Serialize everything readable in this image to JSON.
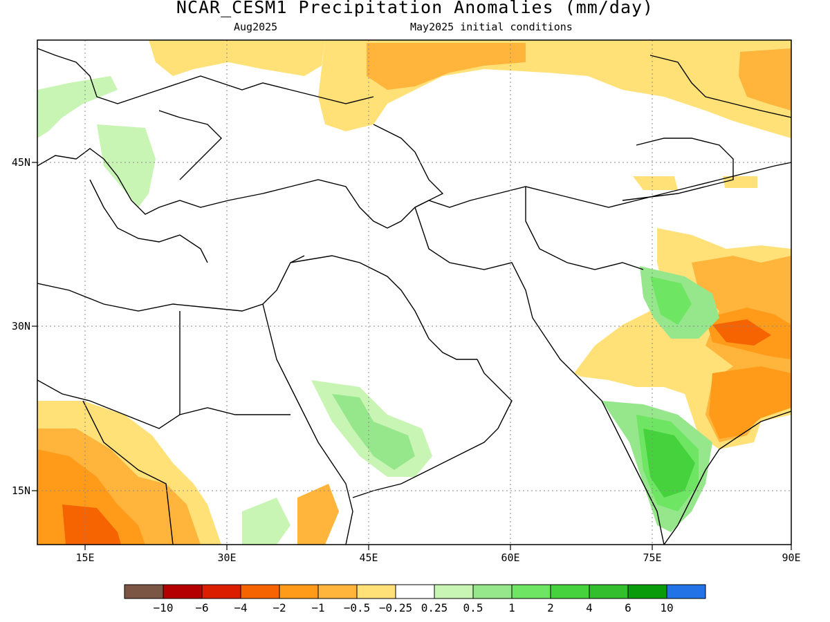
{
  "title": "NCAR_CESM1 Precipitation Anomalies (mm/day)",
  "subtitle_left": "Aug2025",
  "subtitle_right": "May2025 initial conditions",
  "lat_labels": [
    "45N",
    "30N",
    "15N"
  ],
  "lon_labels": [
    "15E",
    "30E",
    "45E",
    "60E",
    "75E",
    "90E"
  ],
  "colorbar": {
    "colors": [
      "#7b5645",
      "#b40000",
      "#dc1e00",
      "#f56400",
      "#ff9b19",
      "#ffb43c",
      "#ffe177",
      "#ffffff",
      "#c8f5b4",
      "#96e68c",
      "#6ee664",
      "#46d23c",
      "#32be2d",
      "#0a9b0a",
      "#2173e6"
    ],
    "labels": [
      "−10",
      "−6",
      "−4",
      "−2",
      "−1",
      "−0.5",
      "−0.25",
      "0.25",
      "0.5",
      "1",
      "2",
      "4",
      "6",
      "10"
    ]
  }
}
